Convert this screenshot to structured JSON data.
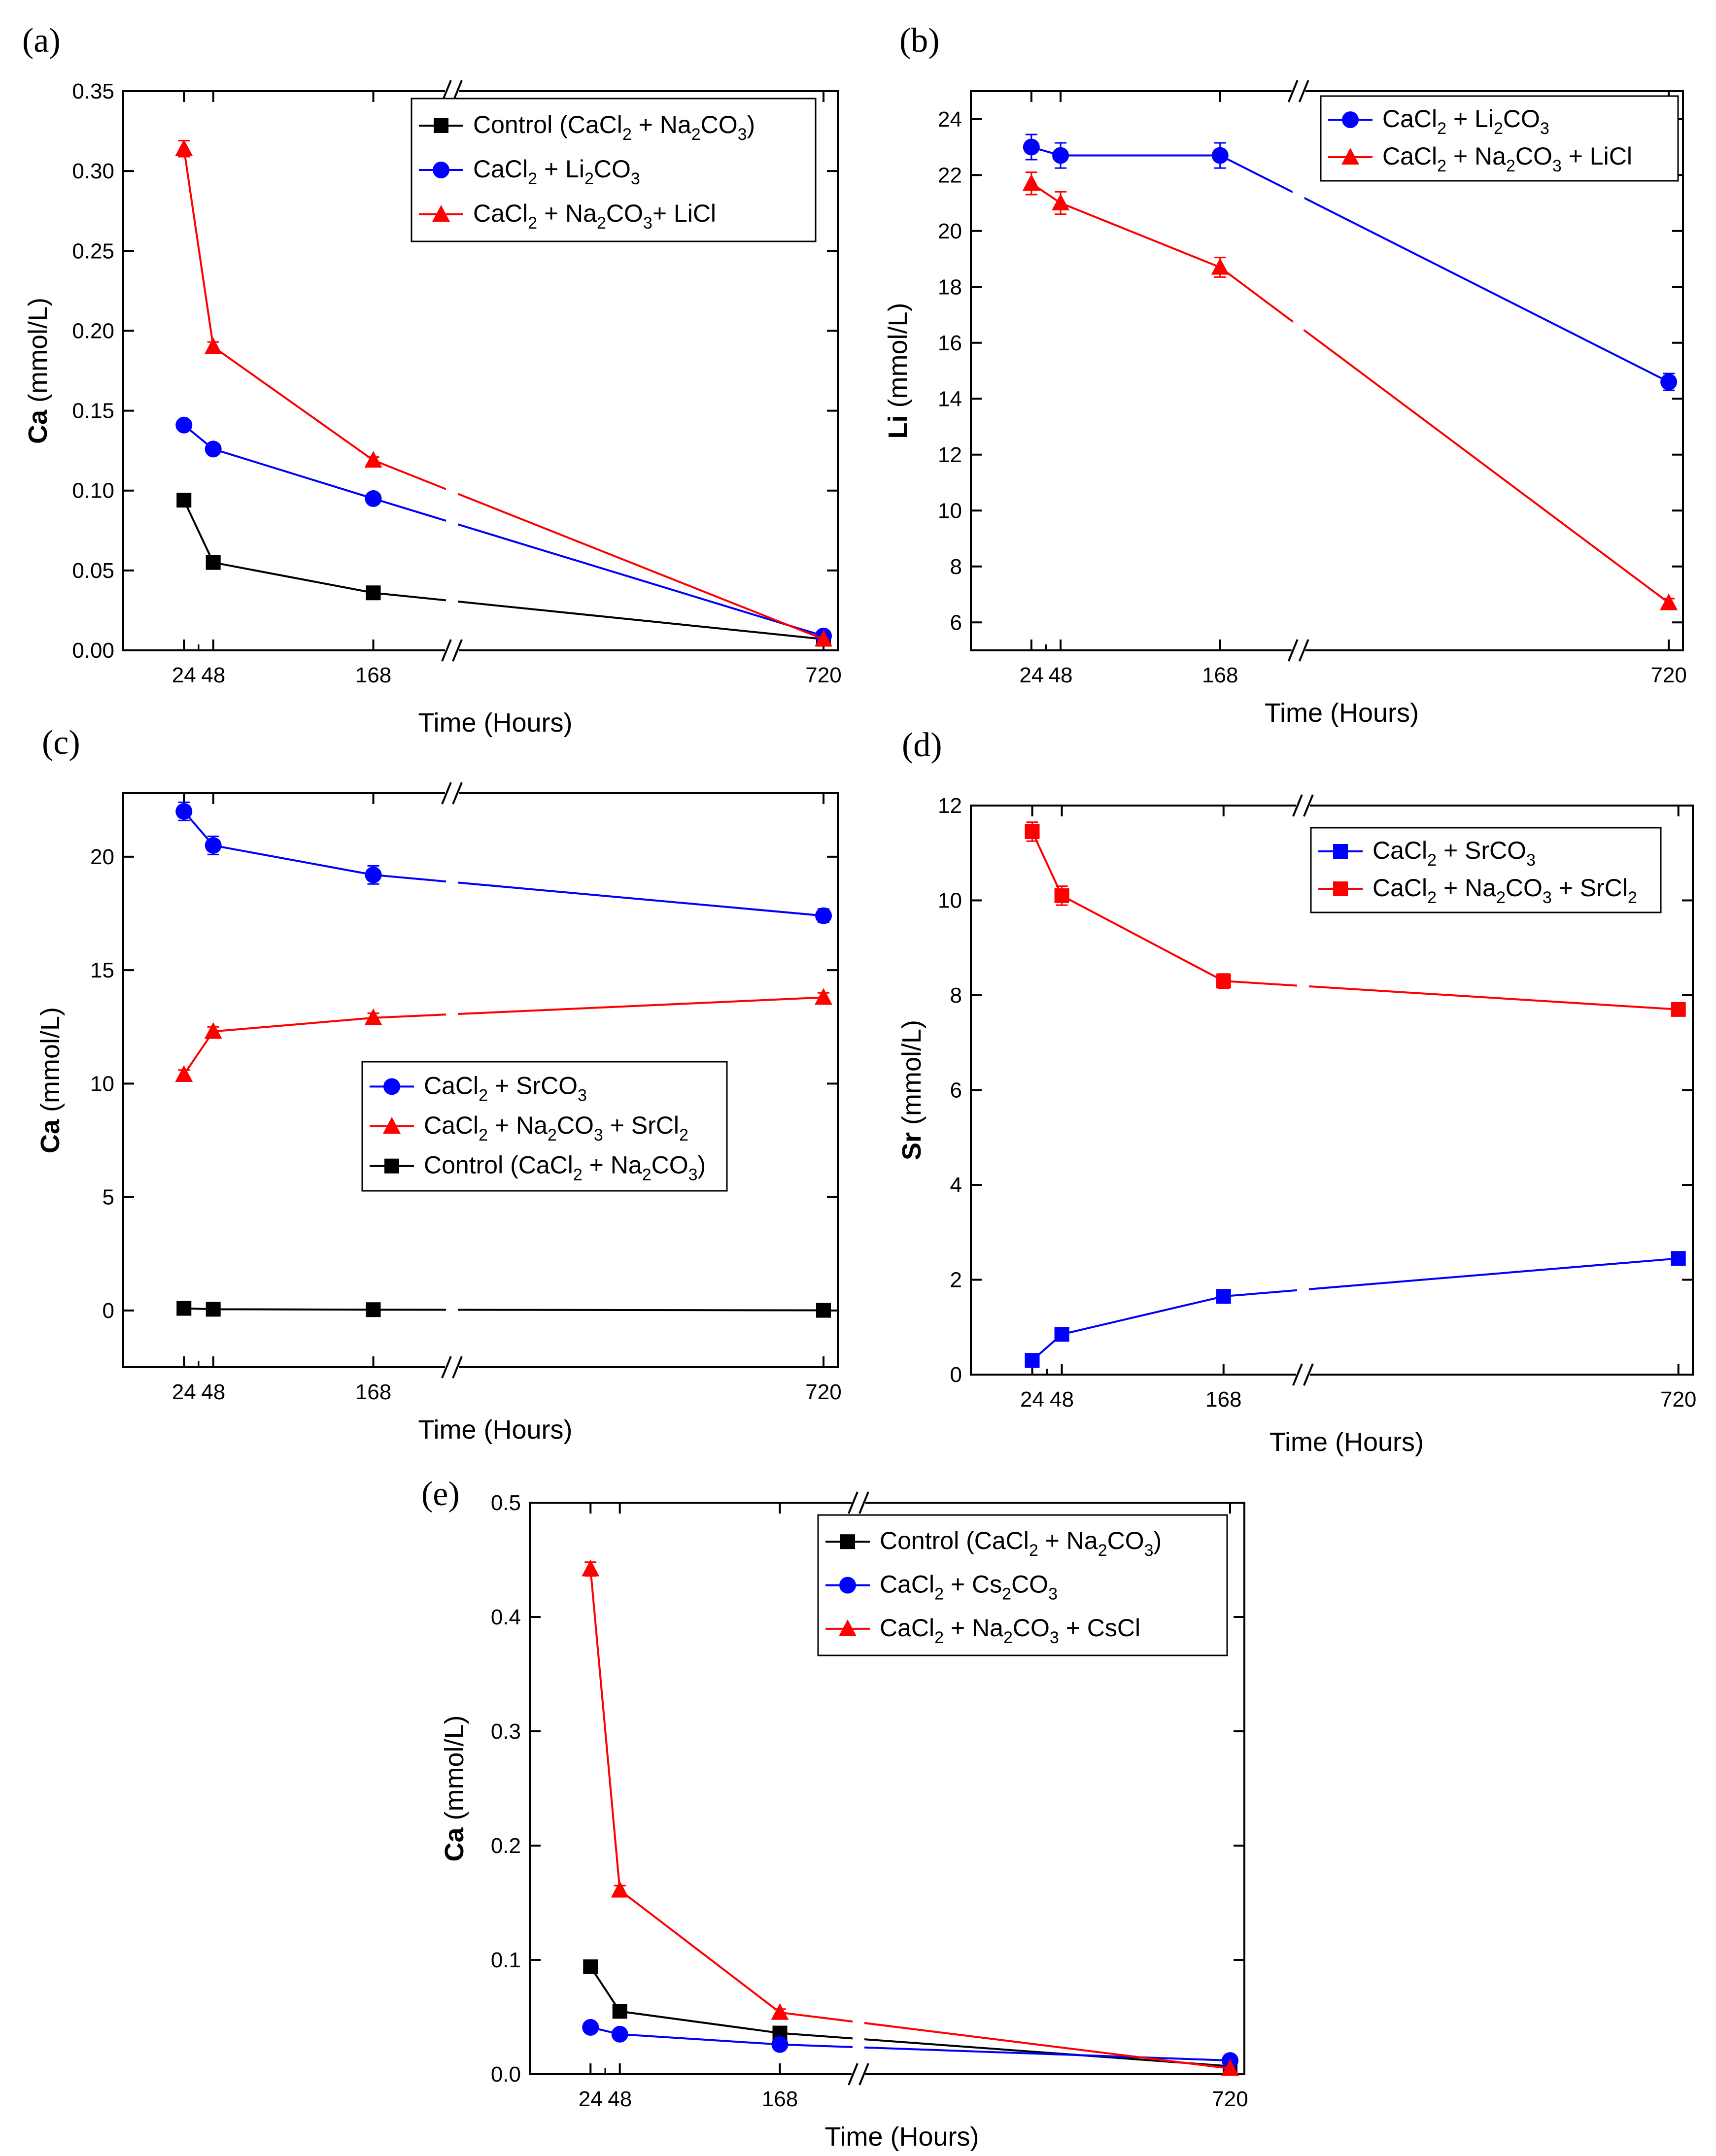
{
  "chart_data": [
    {
      "id": "a",
      "type": "line",
      "panel_label": "(a)",
      "xlabel": "Time (Hours)",
      "ylabel_bold": "Ca",
      "ylabel_rest": " (mmol/L)",
      "x": [
        24,
        48,
        168,
        720
      ],
      "x_tick_labels": [
        "24",
        "48",
        "168",
        "720"
      ],
      "ylim": [
        0,
        0.35
      ],
      "yticks": [
        0,
        0.05,
        0.1,
        0.15,
        0.2,
        0.25,
        0.3,
        0.35
      ],
      "y_tick_labels": [
        "0.00",
        "0.05",
        "0.10",
        "0.15",
        "0.20",
        "0.25",
        "0.30",
        "0.35"
      ],
      "legend_position": "top-right",
      "series": [
        {
          "name": "Control (CaCl2 + Na2CO3)",
          "color": "#000000",
          "marker": "square",
          "values": [
            0.094,
            0.055,
            0.036,
            0.007
          ],
          "err": [
            0,
            0,
            0,
            0
          ]
        },
        {
          "name": "CaCl2 + Li2CO3",
          "color": "#0000ff",
          "marker": "circle",
          "values": [
            0.141,
            0.126,
            0.095,
            0.009
          ],
          "err": [
            0,
            0,
            0,
            0
          ]
        },
        {
          "name": "CaCl2 + Na2CO3+ LiCl",
          "color": "#ff0000",
          "marker": "triangle",
          "values": [
            0.314,
            0.19,
            0.119,
            0.007
          ],
          "err": [
            0.005,
            0.003,
            0.002,
            0
          ]
        }
      ]
    },
    {
      "id": "b",
      "type": "line",
      "panel_label": "(b)",
      "xlabel": "Time (Hours)",
      "ylabel_bold": "Li",
      "ylabel_rest": " (mmol/L)",
      "x": [
        24,
        48,
        168,
        720
      ],
      "x_tick_labels": [
        "24",
        "48",
        "168",
        "720"
      ],
      "ylim": [
        5,
        25
      ],
      "yticks": [
        6,
        8,
        10,
        12,
        14,
        16,
        18,
        20,
        22,
        24
      ],
      "y_tick_labels": [
        "6",
        "8",
        "10",
        "12",
        "14",
        "16",
        "18",
        "20",
        "22",
        "24"
      ],
      "legend_position": "top-right",
      "series": [
        {
          "name": "CaCl2 + Li2CO3",
          "color": "#0000ff",
          "marker": "circle",
          "values": [
            23.0,
            22.7,
            22.7,
            14.6
          ],
          "err": [
            0.45,
            0.45,
            0.45,
            0.3
          ]
        },
        {
          "name": "CaCl2 + Na2CO3 + LiCl",
          "color": "#ff0000",
          "marker": "triangle",
          "values": [
            21.7,
            21.0,
            18.7,
            6.7
          ],
          "err": [
            0.4,
            0.4,
            0.35,
            0.15
          ]
        }
      ]
    },
    {
      "id": "c",
      "type": "line",
      "panel_label": "(c)",
      "xlabel": "Time (Hours)",
      "ylabel_bold": "Ca",
      "ylabel_rest": " (mmol/L)",
      "x": [
        24,
        48,
        168,
        720
      ],
      "x_tick_labels": [
        "24",
        "48",
        "168",
        "720"
      ],
      "ylim": [
        -2.5,
        22.8
      ],
      "yticks": [
        0,
        5,
        10,
        15,
        20
      ],
      "y_tick_labels": [
        "0",
        "5",
        "10",
        "15",
        "20"
      ],
      "legend_position": "center-right",
      "series": [
        {
          "name": "CaCl2 + SrCO3",
          "color": "#0000ff",
          "marker": "circle",
          "values": [
            22.0,
            20.5,
            19.2,
            17.4
          ],
          "err": [
            0.4,
            0.4,
            0.4,
            0.3
          ]
        },
        {
          "name": "CaCl2 + Na2CO3 + SrCl2",
          "color": "#ff0000",
          "marker": "triangle",
          "values": [
            10.4,
            12.3,
            12.9,
            13.8
          ],
          "err": [
            0.2,
            0.2,
            0.2,
            0.2
          ]
        },
        {
          "name": "Control (CaCl2 + Na2CO3)",
          "color": "#000000",
          "marker": "square",
          "values": [
            0.094,
            0.055,
            0.036,
            0.007
          ],
          "err": [
            0,
            0,
            0,
            0
          ]
        }
      ]
    },
    {
      "id": "d",
      "type": "line",
      "panel_label": "(d)",
      "xlabel": "Time (Hours)",
      "ylabel_bold": "Sr",
      "ylabel_rest": " (mmol/L)",
      "x": [
        24,
        48,
        168,
        720
      ],
      "x_tick_labels": [
        "24",
        "48",
        "168",
        "720"
      ],
      "ylim": [
        0,
        12
      ],
      "yticks": [
        0,
        2,
        4,
        6,
        8,
        10,
        12
      ],
      "y_tick_labels": [
        "0",
        "2",
        "4",
        "6",
        "8",
        "10",
        "12"
      ],
      "legend_position": "top-right",
      "series": [
        {
          "name": "CaCl2 + SrCO3",
          "color": "#0000ff",
          "marker": "square",
          "values": [
            0.3,
            0.85,
            1.65,
            2.45
          ],
          "err": [
            0,
            0,
            0,
            0
          ]
        },
        {
          "name": "CaCl2 + Na2CO3 + SrCl2",
          "color": "#ff0000",
          "marker": "square",
          "values": [
            11.45,
            10.1,
            8.3,
            7.7
          ],
          "err": [
            0.2,
            0.2,
            0.15,
            0.1
          ]
        }
      ]
    },
    {
      "id": "e",
      "type": "line",
      "panel_label": "(e)",
      "xlabel": "Time (Hours)",
      "ylabel_bold": "Ca",
      "ylabel_rest": " (mmol/L)",
      "x": [
        24,
        48,
        168,
        720
      ],
      "x_tick_labels": [
        "24",
        "48",
        "168",
        "720"
      ],
      "ylim": [
        0,
        0.5
      ],
      "yticks": [
        0,
        0.1,
        0.2,
        0.3,
        0.4,
        0.5
      ],
      "y_tick_labels": [
        "0.0",
        "0.1",
        "0.2",
        "0.3",
        "0.4",
        "0.5"
      ],
      "legend_position": "top-right",
      "series": [
        {
          "name": "Control (CaCl2 + Na2CO3)",
          "color": "#000000",
          "marker": "square",
          "values": [
            0.094,
            0.055,
            0.036,
            0.007
          ],
          "err": [
            0,
            0,
            0,
            0
          ]
        },
        {
          "name": "CaCl2 + Cs2CO3",
          "color": "#0000ff",
          "marker": "circle",
          "values": [
            0.041,
            0.035,
            0.026,
            0.012
          ],
          "err": [
            0,
            0,
            0,
            0
          ]
        },
        {
          "name": "CaCl2 + Na2CO3 + CsCl",
          "color": "#ff0000",
          "marker": "triangle",
          "values": [
            0.442,
            0.161,
            0.054,
            0.005
          ],
          "err": [
            0.006,
            0.004,
            0.003,
            0
          ]
        }
      ]
    }
  ]
}
